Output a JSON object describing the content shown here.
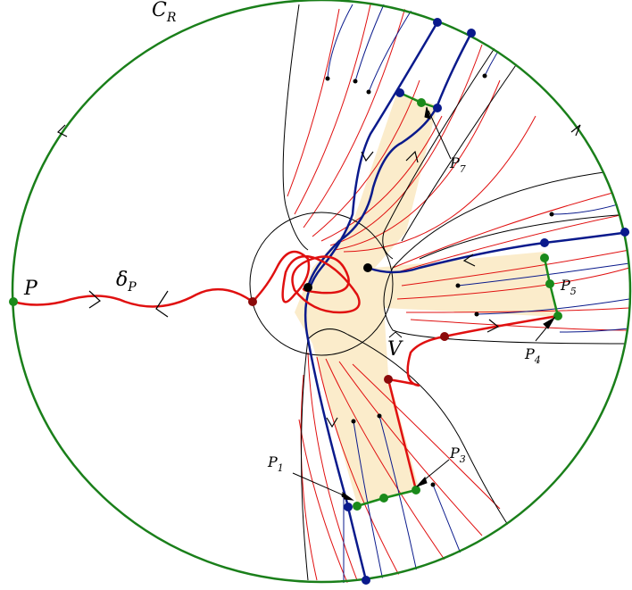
{
  "labels": {
    "circle": "C",
    "circle_sub": "R",
    "point": "P",
    "delta": "δ",
    "delta_sub": "P",
    "vhat": "V",
    "p1": "P",
    "p1_sub": "1",
    "p3": "P",
    "p3_sub": "3",
    "p4": "P",
    "p4_sub": "4",
    "p5": "P",
    "p5_sub": "5",
    "p7": "P",
    "p7_sub": "7"
  },
  "colors": {
    "circle": "#1a7f1a",
    "red": "#e01010",
    "navy": "#0a1a8c",
    "green": "#1a8a1a",
    "darkred": "#8b0a0a",
    "fill": "#fbeccb",
    "black": "#000000"
  }
}
